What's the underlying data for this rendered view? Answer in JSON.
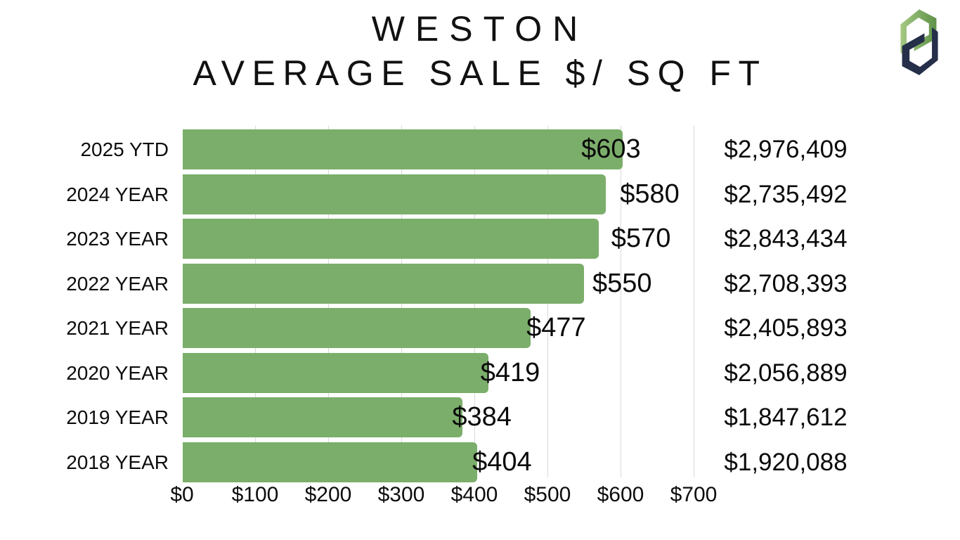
{
  "page": {
    "background": "#ffffff"
  },
  "title": {
    "line1": "WESTON",
    "line2": "AVERAGE SALE $/ SQ FT"
  },
  "logo": {
    "name": "pd-monogram",
    "green_light": "#a6c983",
    "green_dark": "#5e9248",
    "navy": "#252f49"
  },
  "chart_data": {
    "type": "bar",
    "orientation": "horizontal",
    "title": "WESTON AVERAGE SALE $/ SQ FT",
    "categories": [
      "2025 YTD",
      "2024 YEAR",
      "2023 YEAR",
      "2022 YEAR",
      "2021 YEAR",
      "2020 YEAR",
      "2019 YEAR",
      "2018 YEAR"
    ],
    "series": [
      {
        "name": "average-sale-per-sqft",
        "values": [
          603,
          580,
          570,
          550,
          477,
          419,
          384,
          404
        ],
        "labels": [
          "$603",
          "$580",
          "$570",
          "$550",
          "$477",
          "$419",
          "$384",
          "$404"
        ]
      },
      {
        "name": "average-sale-price",
        "labels": [
          "$2,976,409",
          "$2,735,492",
          "$2,843,434",
          "$2,708,393",
          "$2,405,893",
          "$2,056,889",
          "$1,847,612",
          "$1,920,088"
        ]
      }
    ],
    "x_axis": {
      "range": [
        0,
        700
      ],
      "ticks": [
        0,
        100,
        200,
        300,
        400,
        500,
        600,
        700
      ],
      "tick_labels": [
        "$0",
        "$100",
        "$200",
        "$300",
        "$400",
        "$500",
        "$600",
        "$700"
      ]
    },
    "grid": true,
    "legend": false,
    "bar_color": "#7bae6a",
    "gridline_color": "#d9d9d9",
    "text_color": "#0d0d0d"
  }
}
